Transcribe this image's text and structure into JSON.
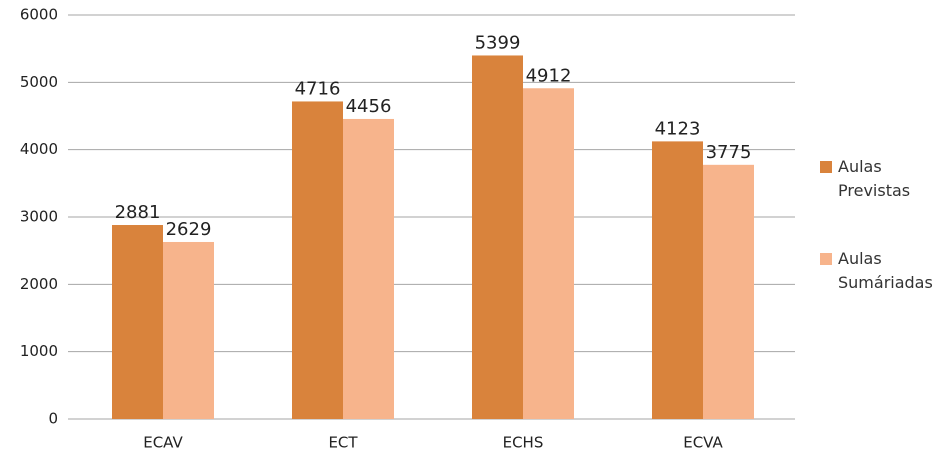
{
  "chart_data": {
    "type": "bar",
    "categories": [
      "ECAV",
      "ECT",
      "ECHS",
      "ECVA"
    ],
    "series": [
      {
        "name": "Aulas Previstas",
        "color": "#d9833c",
        "values": [
          2881,
          4716,
          5399,
          4123
        ]
      },
      {
        "name": "Aulas Sumáriadas",
        "color": "#f7b48c",
        "values": [
          2629,
          4456,
          4912,
          3775
        ]
      }
    ],
    "ylim": [
      0,
      6000
    ],
    "yticks": [
      0,
      1000,
      2000,
      3000,
      4000,
      5000,
      6000
    ],
    "grid": true,
    "legend": "right"
  }
}
